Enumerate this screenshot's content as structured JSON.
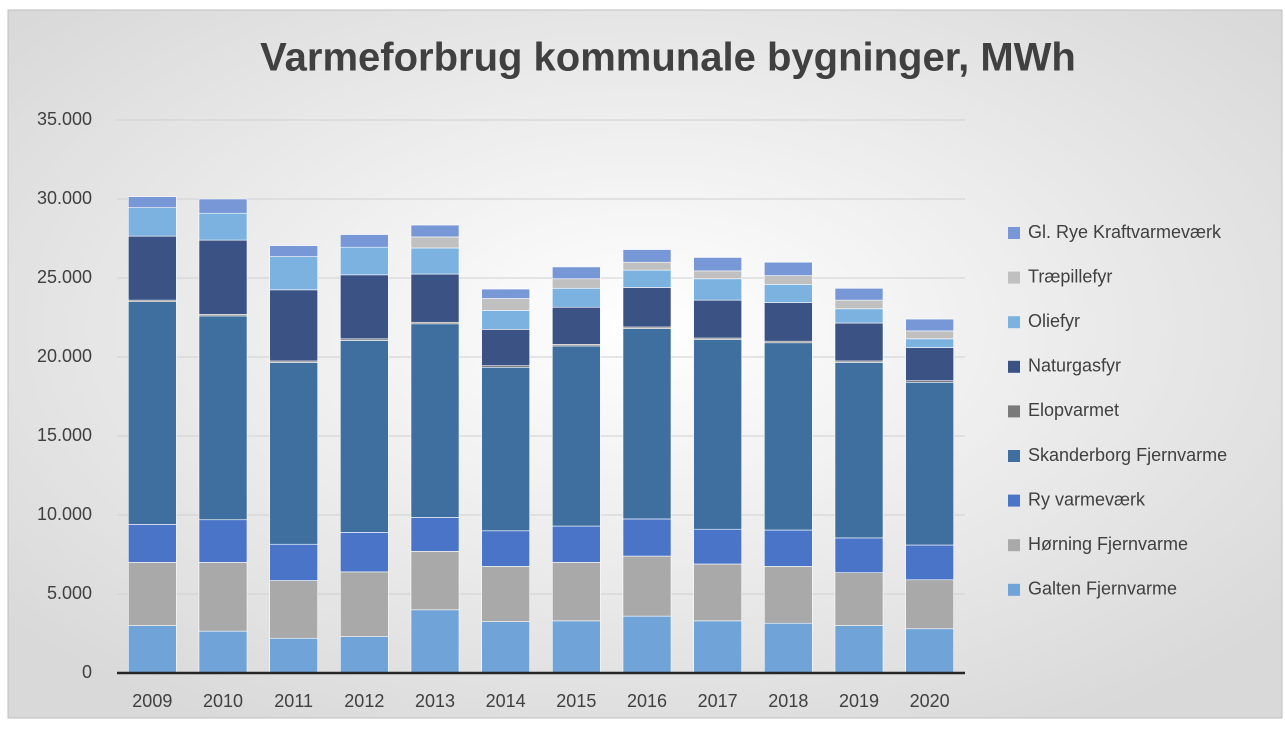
{
  "chart_data": {
    "type": "stacked_bar",
    "title": "Varmeforbrug kommunale bygninger, MWh",
    "categories": [
      "2009",
      "2010",
      "2011",
      "2012",
      "2013",
      "2014",
      "2015",
      "2016",
      "2017",
      "2018",
      "2019",
      "2020"
    ],
    "series": [
      {
        "name": "Galten Fjernvarme",
        "color": "#70a4d8",
        "values": [
          3000,
          2650,
          2200,
          2300,
          4000,
          3250,
          3300,
          3600,
          3300,
          3150,
          3000,
          2800
        ]
      },
      {
        "name": "Hørning Fjernvarme",
        "color": "#a9a9a9",
        "values": [
          4000,
          4350,
          3650,
          4100,
          3700,
          3500,
          3700,
          3800,
          3600,
          3600,
          3350,
          3100
        ]
      },
      {
        "name": "Ry varmeværk",
        "color": "#4a74c8",
        "values": [
          2400,
          2700,
          2300,
          2500,
          2150,
          2250,
          2300,
          2350,
          2200,
          2300,
          2200,
          2200
        ]
      },
      {
        "name": "Skanderborg Fjernvarme",
        "color": "#3e6f9e",
        "values": [
          14100,
          12900,
          11500,
          12150,
          12250,
          10350,
          11400,
          12050,
          12000,
          11850,
          11100,
          10300
        ]
      },
      {
        "name": "Elopvarmet",
        "color": "#7a7a7a",
        "values": [
          100,
          100,
          100,
          100,
          100,
          100,
          100,
          100,
          100,
          100,
          100,
          100
        ]
      },
      {
        "name": "Naturgasfyr",
        "color": "#3b5285",
        "values": [
          4050,
          4700,
          4500,
          4050,
          3050,
          2300,
          2350,
          2500,
          2400,
          2450,
          2400,
          2100
        ]
      },
      {
        "name": "Oliefyr",
        "color": "#7bb2e0",
        "values": [
          1800,
          1700,
          2100,
          1750,
          1650,
          1200,
          1200,
          1100,
          1350,
          1150,
          900,
          550
        ]
      },
      {
        "name": "Træpillefyr",
        "color": "#c0c0c0",
        "values": [
          0,
          0,
          0,
          0,
          700,
          750,
          600,
          500,
          500,
          550,
          550,
          500
        ]
      },
      {
        "name": "Gl. Rye Kraftvarmeværk",
        "color": "#7797d6",
        "values": [
          700,
          900,
          700,
          800,
          750,
          600,
          750,
          800,
          850,
          850,
          750,
          750
        ]
      }
    ],
    "ylim": [
      0,
      35000
    ],
    "yticks": [
      0,
      {
        "value": 5000,
        "label": "5.000"
      },
      {
        "value": 10000,
        "label": "10.000"
      },
      {
        "value": 15000,
        "label": "15.000"
      },
      {
        "value": 20000,
        "label": "20.000"
      },
      {
        "value": 25000,
        "label": "25.000"
      },
      {
        "value": 30000,
        "label": "30.000"
      },
      {
        "value": 35000,
        "label": "35.000"
      }
    ],
    "grid": true,
    "legend": "right"
  }
}
